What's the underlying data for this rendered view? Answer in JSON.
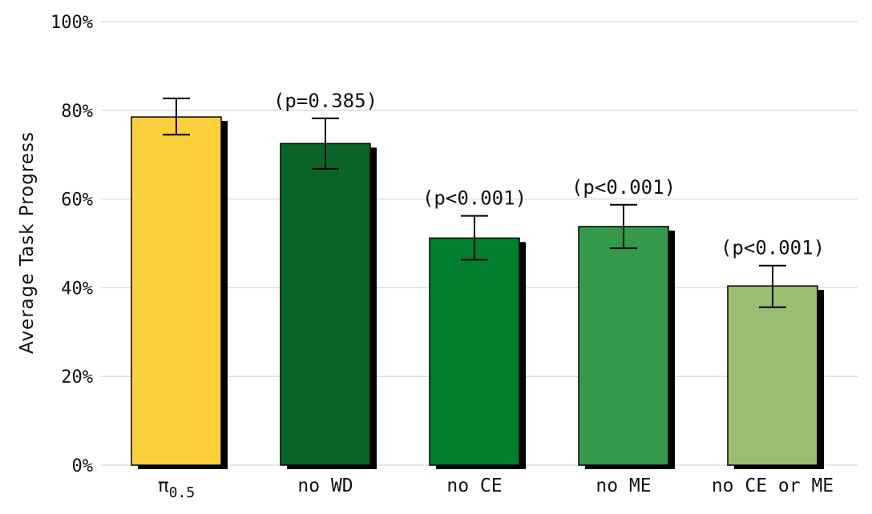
{
  "chart_data": {
    "type": "bar",
    "ylabel": "Average Task Progress",
    "xlabel": "",
    "ylim": [
      0,
      100
    ],
    "yticks": [
      "0%",
      "20%",
      "40%",
      "60%",
      "80%",
      "100%"
    ],
    "ytick_values": [
      0,
      20,
      40,
      60,
      80,
      100
    ],
    "grid": true,
    "categories": [
      {
        "base": "π",
        "sub": "0.5"
      },
      {
        "base": "no WD",
        "sub": ""
      },
      {
        "base": "no CE",
        "sub": ""
      },
      {
        "base": "no ME",
        "sub": ""
      },
      {
        "base": "no CE or ME",
        "sub": ""
      }
    ],
    "values": [
      78.5,
      72.5,
      51.2,
      53.8,
      40.4
    ],
    "error_low": [
      74.5,
      66.8,
      46.3,
      48.9,
      35.6
    ],
    "error_high": [
      82.7,
      78.2,
      56.2,
      58.7,
      45.0
    ],
    "annotations": [
      "",
      "(p=0.385)",
      "(p<0.001)",
      "(p<0.001)",
      "(p<0.001)"
    ],
    "colors": [
      "#fcd03c",
      "#0a6427",
      "#007f2e",
      "#339a4c",
      "#9bbd71"
    ],
    "shadow_color": "#000000"
  }
}
